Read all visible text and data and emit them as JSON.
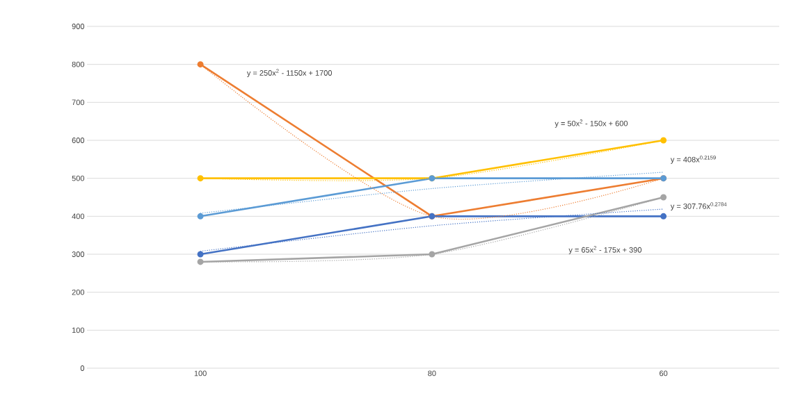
{
  "chart_data": {
    "type": "line",
    "categories": [
      "100",
      "80",
      "60"
    ],
    "series": [
      {
        "color": "#ed7d31",
        "values": [
          800,
          400,
          500
        ]
      },
      {
        "color": "#ffc000",
        "values": [
          500,
          500,
          600
        ]
      },
      {
        "color": "#5b9bd5",
        "values": [
          400,
          500,
          500
        ]
      },
      {
        "color": "#4472c4",
        "values": [
          300,
          400,
          400
        ]
      },
      {
        "color": "#a5a5a5",
        "values": [
          280,
          300,
          450
        ]
      },
      {
        "color": "#ed7d31",
        "values": [
          800,
          400,
          500
        ],
        "marker": "none",
        "line_style": "dotted"
      },
      {
        "color": "#ffc000",
        "values": [
          500,
          500,
          600
        ],
        "marker": "none",
        "line_style": "dotted"
      },
      {
        "color": "#5b9bd5",
        "values": [
          408,
          473,
          516
        ],
        "marker": "none",
        "line_style": "dotted"
      },
      {
        "color": "#4472c4",
        "values": [
          308,
          375,
          419
        ],
        "marker": "none",
        "line_style": "dotted"
      },
      {
        "color": "#a5a5a5",
        "values": [
          280,
          300,
          450
        ],
        "marker": "none",
        "line_style": "dotted"
      }
    ],
    "annotations": [
      "y = 250x$^{2}$ - 1150x + 1700",
      "y = 50x$^{2}$ - 150x + 600",
      "y = 408x$^{0.2159}$",
      "y = 307.76x$^{0.2784}$",
      "y = 65x$^{2}$ - 175x + 390"
    ],
    "ylim": [
      0,
      900
    ],
    "yticks": [
      0,
      100,
      200,
      300,
      400,
      500,
      600,
      700,
      800,
      900
    ],
    "grid": "y",
    "marker": "circle",
    "line_style": "solid"
  }
}
